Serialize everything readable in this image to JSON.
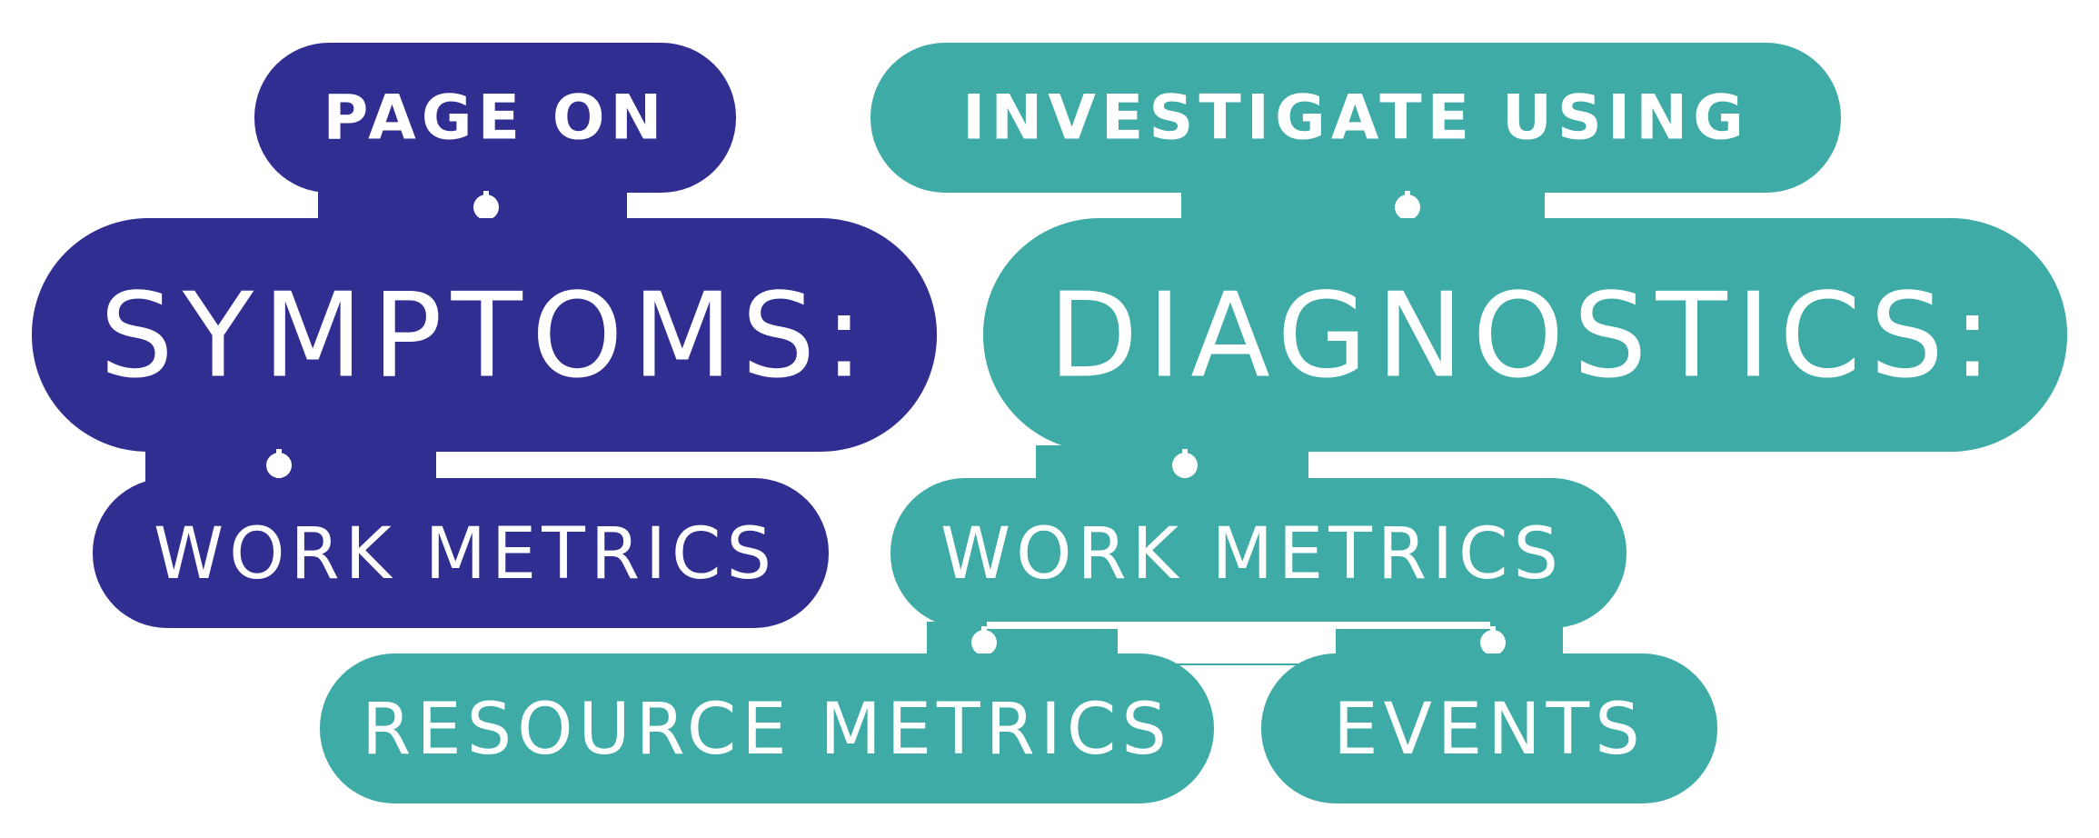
{
  "colors": {
    "symptoms": "#312e91",
    "diagnostics": "#3eaba6",
    "background": "#ffffff"
  },
  "symptoms_branch": {
    "header": "PAGE ON",
    "title": "SYMPTOMS:",
    "items": [
      "WORK METRICS"
    ]
  },
  "diagnostics_branch": {
    "header": "INVESTIGATE USING",
    "title": "DIAGNOSTICS:",
    "items": [
      "WORK METRICS",
      "RESOURCE METRICS",
      "EVENTS"
    ]
  }
}
